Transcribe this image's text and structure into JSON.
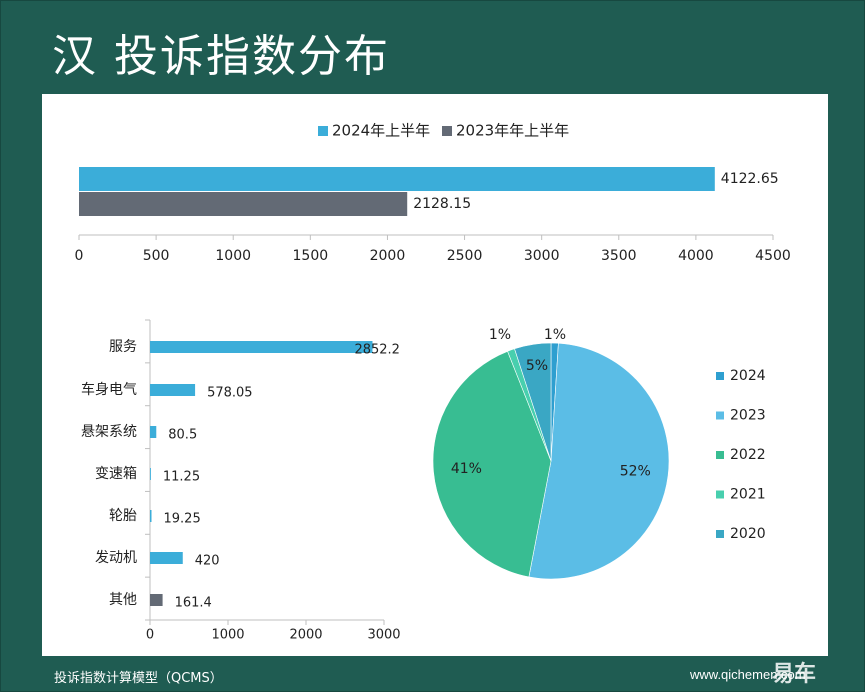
{
  "page": {
    "title": "汉 投诉指数分布",
    "footer_left": "投诉指数计算模型（QCMS）",
    "footer_right": "www.qichemen.com",
    "watermark": "易车"
  },
  "chart_data": [
    {
      "type": "bar",
      "orientation": "horizontal",
      "title": "",
      "legend_position": "top",
      "categories": [
        ""
      ],
      "series": [
        {
          "name": "2024年上半年",
          "values": [
            4122.65
          ],
          "color": "#3badd9"
        },
        {
          "name": "2023年年上半年",
          "values": [
            2128.15
          ],
          "color": "#636a75"
        }
      ],
      "xlim": [
        0,
        4500
      ],
      "xticks": [
        0,
        500,
        1000,
        1500,
        2000,
        2500,
        3000,
        3500,
        4000,
        4500
      ],
      "data_labels": [
        "4122.65",
        "2128.15"
      ]
    },
    {
      "type": "bar",
      "orientation": "horizontal",
      "categories": [
        "服务",
        "车身电气",
        "悬架系统",
        "变速箱",
        "轮胎",
        "发动机",
        "其他"
      ],
      "values": [
        2852.2,
        578.05,
        80.5,
        11.25,
        19.25,
        420,
        161.4
      ],
      "data_labels": [
        "2852.2",
        "578.05",
        "80.5",
        "11.25",
        "19.25",
        "420",
        "161.4"
      ],
      "colors": [
        "#3badd9",
        "#3badd9",
        "#3badd9",
        "#3badd9",
        "#3badd9",
        "#3badd9",
        "#636a75"
      ],
      "xlim": [
        0,
        3000
      ],
      "xticks": [
        0,
        1000,
        2000,
        3000
      ]
    },
    {
      "type": "pie",
      "legend_position": "right",
      "slices": [
        {
          "label": "2024",
          "value": 1,
          "display": "1%",
          "color": "#2e9fd0"
        },
        {
          "label": "2023",
          "value": 52,
          "display": "52%",
          "color": "#5bbde6"
        },
        {
          "label": "2022",
          "value": 41,
          "display": "41%",
          "color": "#38bd92"
        },
        {
          "label": "2021",
          "value": 1,
          "display": "1%",
          "color": "#48cfae"
        },
        {
          "label": "2020",
          "value": 5,
          "display": "5%",
          "color": "#3aa7c4"
        }
      ]
    }
  ]
}
